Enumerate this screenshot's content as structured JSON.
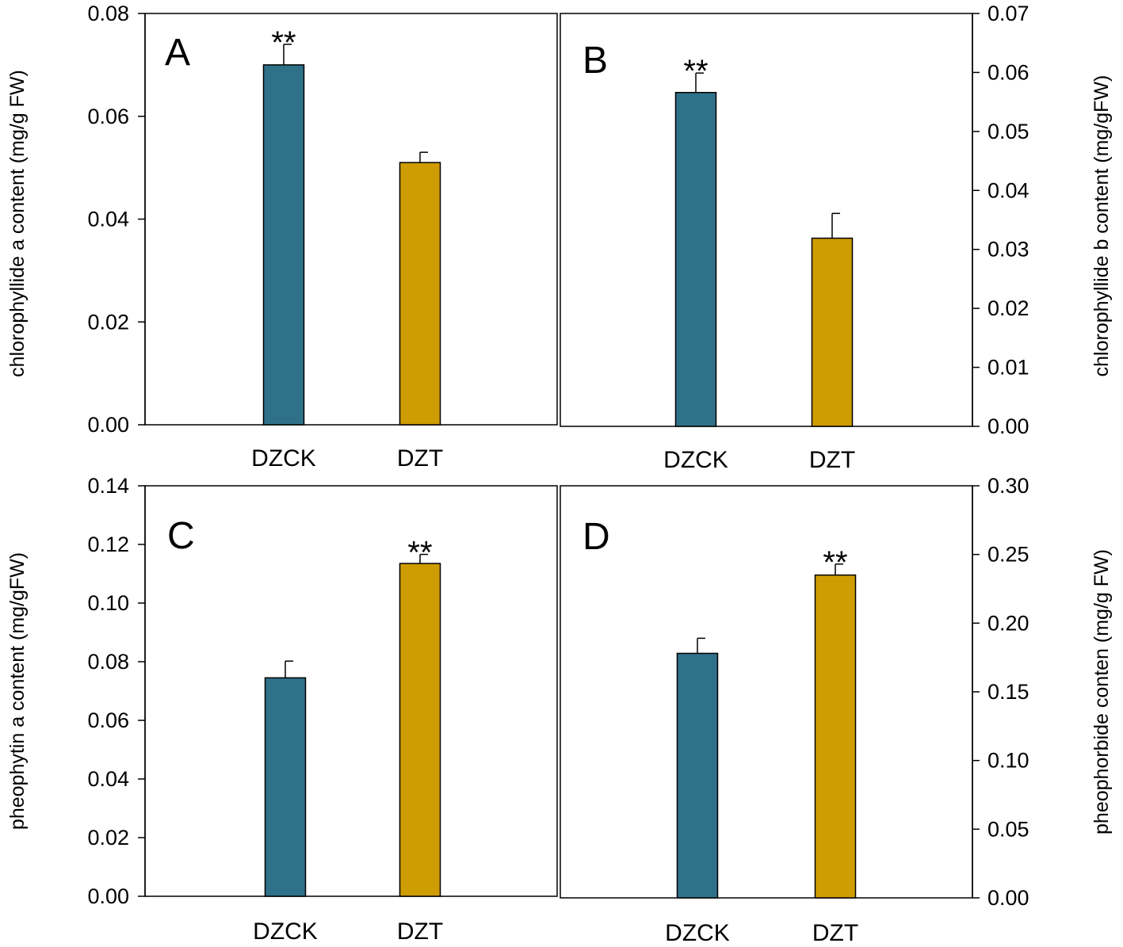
{
  "colors": {
    "DZCK": "#2f7189",
    "DZT": "#cf9c02"
  },
  "chart_data": [
    {
      "type": "bar",
      "panel": "A",
      "categories": [
        "DZCK",
        "DZT"
      ],
      "values": [
        0.07,
        0.051
      ],
      "errors": [
        0.004,
        0.002
      ],
      "significance": [
        "**",
        ""
      ],
      "ylabel": "chlorophyllide a content (mg/g FW)",
      "ylim": [
        0,
        0.08
      ],
      "yticks": [
        "0.00",
        "0.02",
        "0.04",
        "0.06",
        "0.08"
      ],
      "yaxis_side": "left"
    },
    {
      "type": "bar",
      "panel": "B",
      "categories": [
        "DZCK",
        "DZT"
      ],
      "values": [
        0.0566,
        0.0319
      ],
      "errors": [
        0.0033,
        0.0042
      ],
      "significance": [
        "**",
        ""
      ],
      "ylabel": "chlorophyllide b content (mg/gFW)",
      "ylim": [
        0,
        0.07
      ],
      "yticks": [
        "0.00",
        "0.01",
        "0.02",
        "0.03",
        "0.04",
        "0.05",
        "0.06",
        "0.07"
      ],
      "yaxis_side": "right"
    },
    {
      "type": "bar",
      "panel": "C",
      "categories": [
        "DZCK",
        "DZT"
      ],
      "values": [
        0.0745,
        0.1135
      ],
      "errors": [
        0.0057,
        0.0031
      ],
      "significance": [
        "",
        "**"
      ],
      "ylabel": "pheophytin a content (mg/gFW)",
      "ylim": [
        0,
        0.14
      ],
      "yticks": [
        "0.00",
        "0.02",
        "0.04",
        "0.06",
        "0.08",
        "0.10",
        "0.12",
        "0.14"
      ],
      "yaxis_side": "left"
    },
    {
      "type": "bar",
      "panel": "D",
      "categories": [
        "DZCK",
        "DZT"
      ],
      "values": [
        0.178,
        0.235
      ],
      "errors": [
        0.011,
        0.008
      ],
      "significance": [
        "",
        "**"
      ],
      "ylabel": "pheophorbide conten (mg/g FW)",
      "ylim": [
        0,
        0.3
      ],
      "yticks": [
        "0.00",
        "0.05",
        "0.10",
        "0.15",
        "0.20",
        "0.25",
        "0.30"
      ],
      "yaxis_side": "right"
    }
  ]
}
